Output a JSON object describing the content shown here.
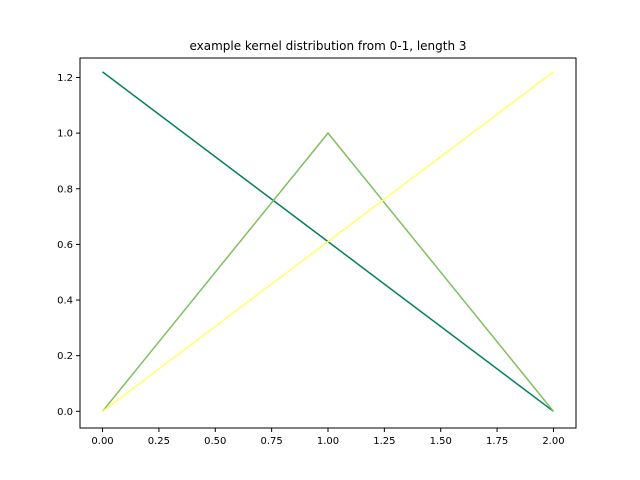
{
  "chart_data": {
    "type": "line",
    "title": "example kernel distribution from 0-1, length 3",
    "xlabel": "",
    "ylabel": "",
    "xlim": [
      -0.1,
      2.1
    ],
    "ylim": [
      -0.06,
      1.27
    ],
    "grid": false,
    "x_ticks": [
      0.0,
      0.25,
      0.5,
      0.75,
      1.0,
      1.25,
      1.5,
      1.75,
      2.0
    ],
    "x_tick_labels": [
      "0.00",
      "0.25",
      "0.50",
      "0.75",
      "1.00",
      "1.25",
      "1.50",
      "1.75",
      "2.00"
    ],
    "y_ticks": [
      0.0,
      0.2,
      0.4,
      0.6,
      0.8,
      1.0,
      1.2
    ],
    "y_tick_labels": [
      "0.0",
      "0.2",
      "0.4",
      "0.6",
      "0.8",
      "1.0",
      "1.2"
    ],
    "x": [
      0,
      1,
      2
    ],
    "series": [
      {
        "values": [
          1.22,
          0.61,
          0.0
        ],
        "color": "#007f5f"
      },
      {
        "values": [
          0.0,
          1.0,
          0.0
        ],
        "color": "#7fbf5f"
      },
      {
        "values": [
          0.0,
          0.61,
          1.22
        ],
        "color": "#ffff66"
      }
    ]
  }
}
